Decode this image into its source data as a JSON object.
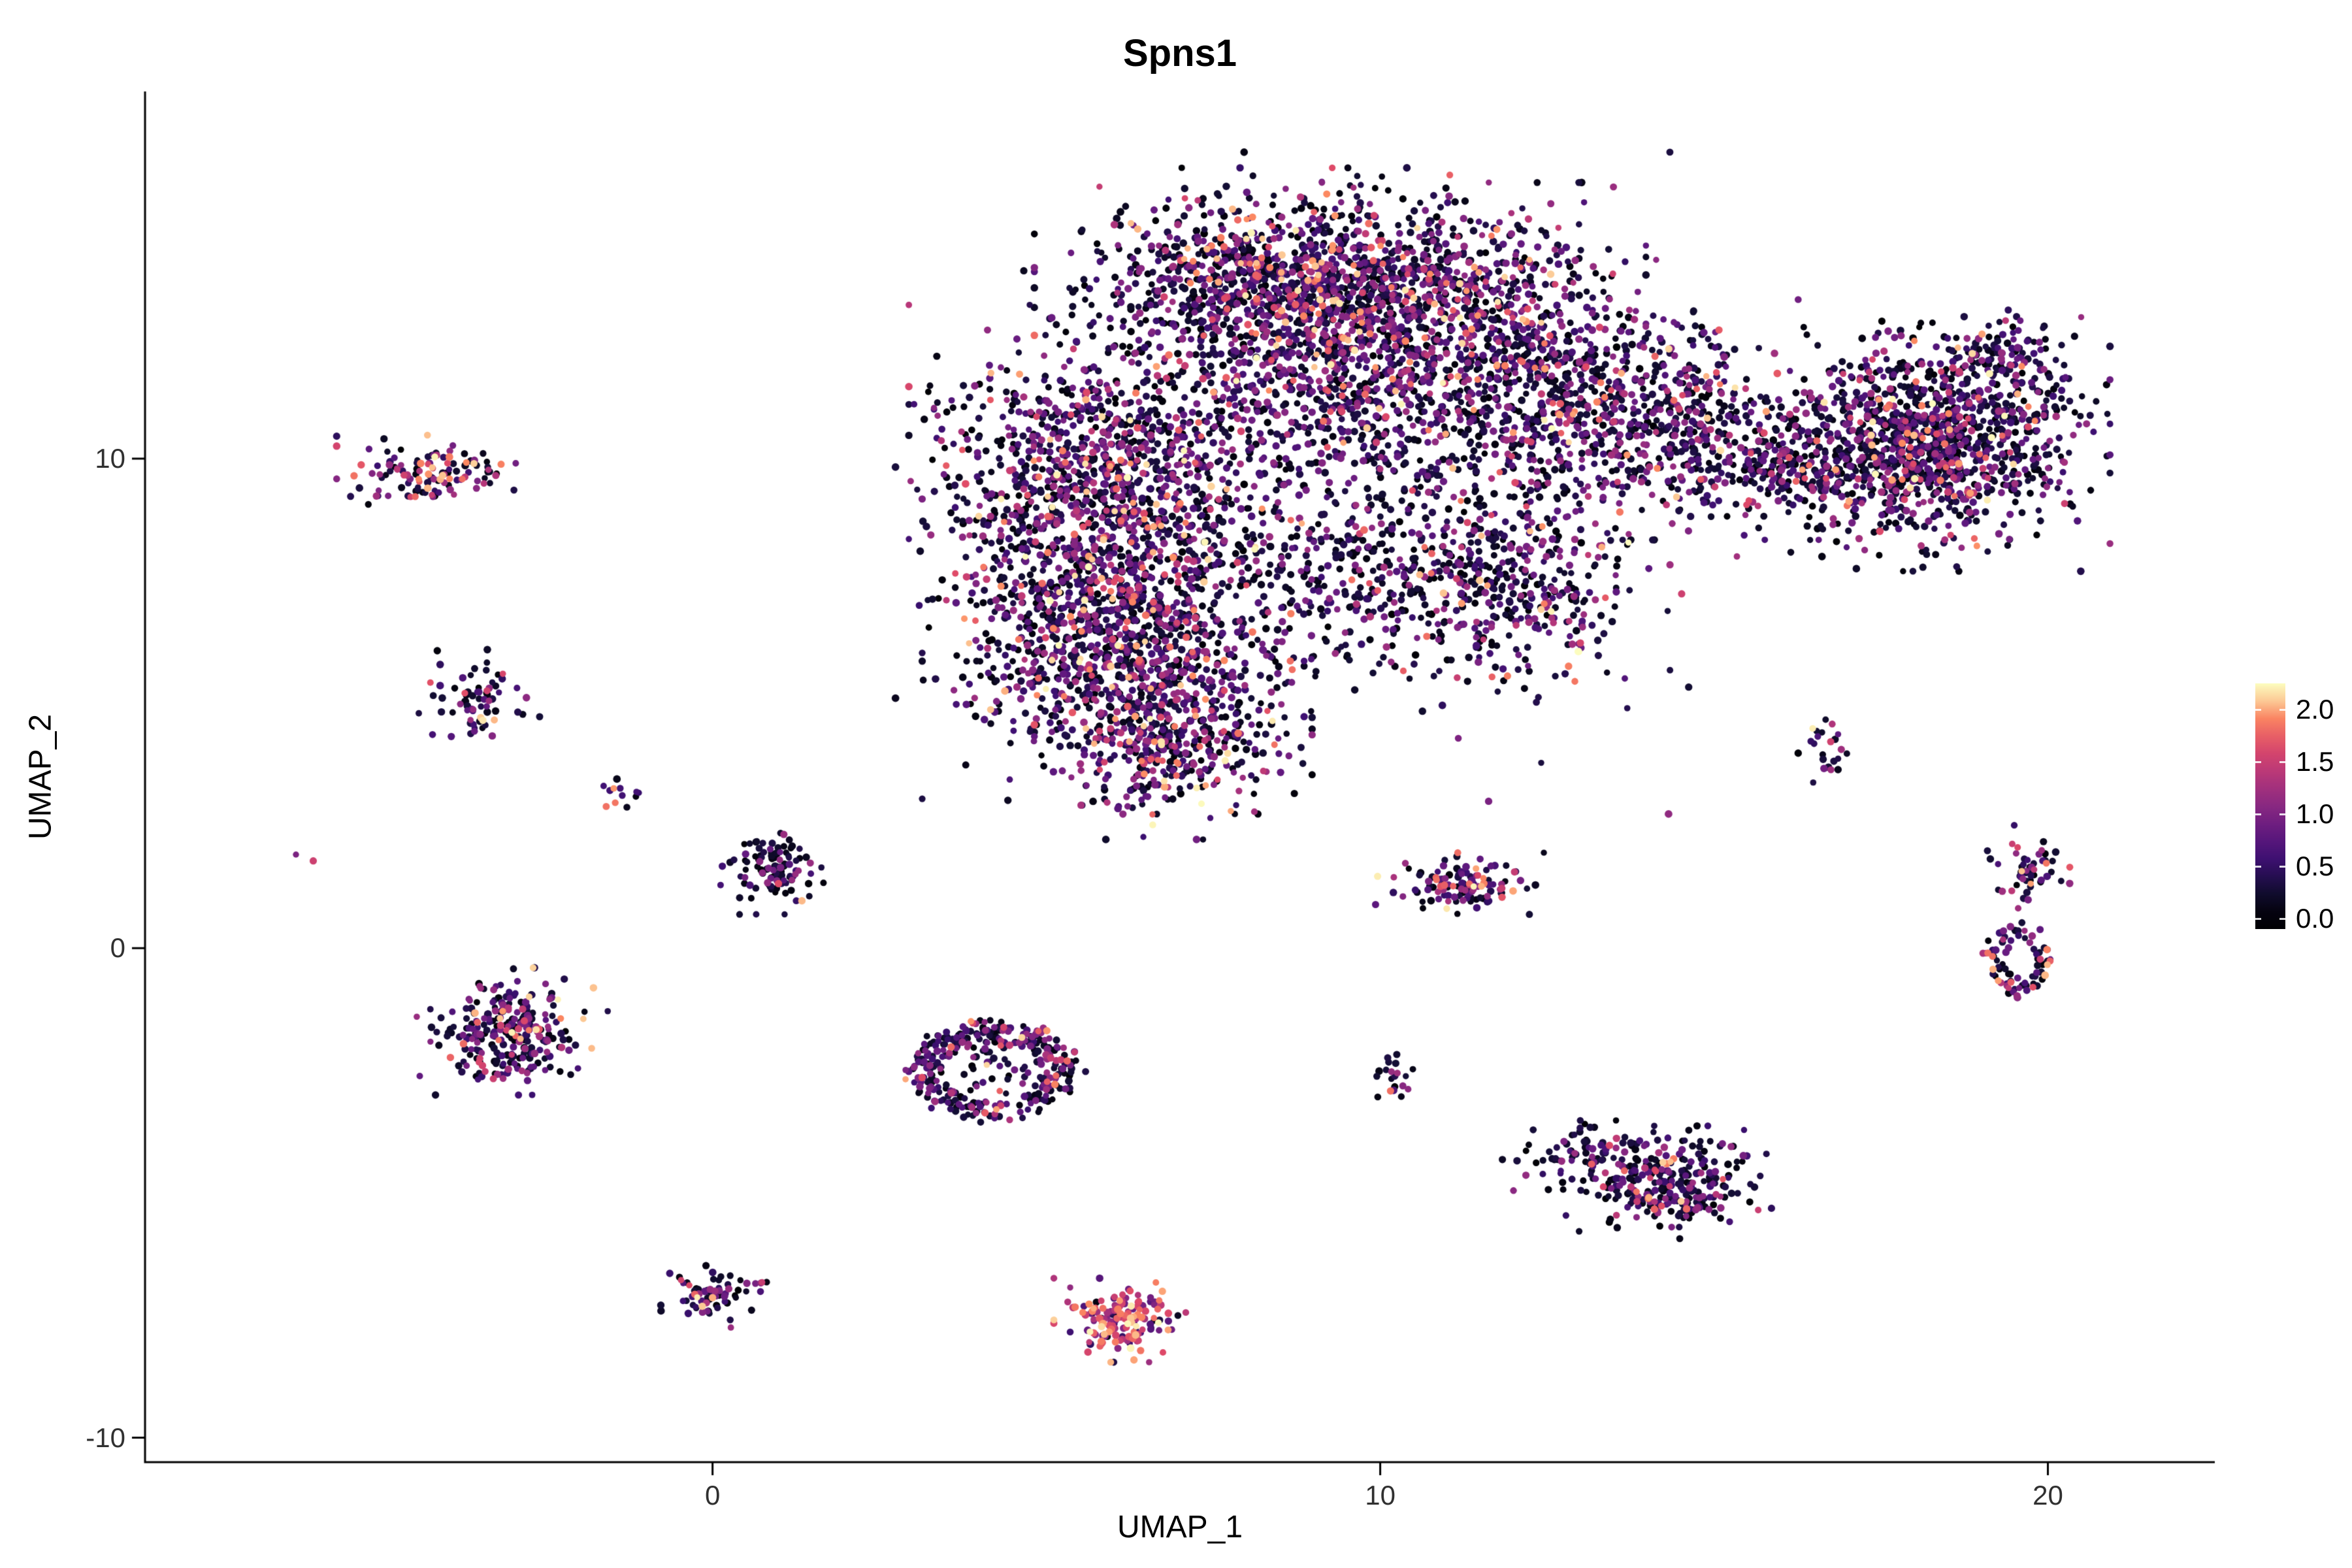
{
  "title": "Spns1",
  "colors": {
    "background": "#ffffff",
    "axis_line": "#000000",
    "tick_label": "#303030",
    "title": "#000000"
  },
  "chart_data": {
    "type": "scatter",
    "title": "Spns1",
    "xlabel": "UMAP_1",
    "ylabel": "UMAP_2",
    "xlim": [
      -8.5,
      22.5
    ],
    "ylim": [
      -10.5,
      17.5
    ],
    "grid": false,
    "point_radius_px": 5.3,
    "x_ticks": [
      {
        "value": 0,
        "label": "0"
      },
      {
        "value": 10,
        "label": "10"
      },
      {
        "value": 20,
        "label": "20"
      }
    ],
    "y_ticks": [
      {
        "value": -10,
        "label": "-10"
      },
      {
        "value": 0,
        "label": "0"
      },
      {
        "value": 10,
        "label": "10"
      }
    ],
    "legend": {
      "type": "colorbar",
      "position": "right",
      "value_range": [
        0,
        2.2
      ],
      "palette": "magma",
      "palette_stops": [
        {
          "t": 0.0,
          "hex": "#000004"
        },
        {
          "t": 0.13,
          "hex": "#140e36"
        },
        {
          "t": 0.25,
          "hex": "#3b0f70"
        },
        {
          "t": 0.38,
          "hex": "#641a80"
        },
        {
          "t": 0.5,
          "hex": "#8c2981"
        },
        {
          "t": 0.63,
          "hex": "#b73779"
        },
        {
          "t": 0.75,
          "hex": "#de4968"
        },
        {
          "t": 0.88,
          "hex": "#fc8961"
        },
        {
          "t": 1.0,
          "hex": "#fcfdbf"
        }
      ],
      "ticks": [
        {
          "value": 2.0,
          "label": "2.0"
        },
        {
          "value": 1.5,
          "label": "1.5"
        },
        {
          "value": 1.0,
          "label": "1.0"
        },
        {
          "value": 0.5,
          "label": "0.5"
        },
        {
          "value": 0.0,
          "label": "0.0"
        }
      ]
    },
    "expression_levels": {
      "dark": [
        0.0,
        0.4
      ],
      "mid": [
        0.45,
        1.25
      ],
      "high": [
        1.25,
        2.2
      ]
    },
    "clusters": [
      {
        "name": "main-left-upper",
        "cx": 5.8,
        "cy": 9.5,
        "sx": 1.1,
        "sy": 1.4,
        "n": 1100,
        "mix": [
          0.5,
          0.38,
          0.12
        ]
      },
      {
        "name": "main-left-lower",
        "cx": 6.0,
        "cy": 6.3,
        "sx": 1.1,
        "sy": 1.3,
        "n": 1000,
        "mix": [
          0.52,
          0.36,
          0.12
        ]
      },
      {
        "name": "main-lower-lobe",
        "cx": 6.9,
        "cy": 4.3,
        "sx": 0.8,
        "sy": 0.8,
        "n": 400,
        "mix": [
          0.5,
          0.38,
          0.12
        ]
      },
      {
        "name": "main-top-arc-left",
        "cx": 8.2,
        "cy": 13.6,
        "sx": 1.3,
        "sy": 0.9,
        "n": 900,
        "mix": [
          0.5,
          0.38,
          0.12
        ]
      },
      {
        "name": "main-top-arc-right",
        "cx": 10.6,
        "cy": 13.3,
        "sx": 1.3,
        "sy": 0.9,
        "n": 800,
        "mix": [
          0.52,
          0.36,
          0.12
        ]
      },
      {
        "name": "main-center",
        "cx": 9.2,
        "cy": 11.2,
        "sx": 1.1,
        "sy": 1.0,
        "n": 500,
        "mix": [
          0.55,
          0.35,
          0.1
        ]
      },
      {
        "name": "main-center-right",
        "cx": 12.6,
        "cy": 11.2,
        "sx": 1.3,
        "sy": 1.1,
        "n": 650,
        "mix": [
          0.58,
          0.33,
          0.09
        ]
      },
      {
        "name": "main-lower-middle",
        "cx": 9.8,
        "cy": 7.7,
        "sx": 1.5,
        "sy": 1.1,
        "n": 400,
        "mix": [
          0.66,
          0.28,
          0.06
        ]
      },
      {
        "name": "main-lower-right",
        "cx": 12.0,
        "cy": 7.3,
        "sx": 0.9,
        "sy": 0.9,
        "n": 300,
        "mix": [
          0.55,
          0.35,
          0.1
        ]
      },
      {
        "name": "main-right-mid",
        "cx": 14.3,
        "cy": 10.6,
        "sx": 0.9,
        "sy": 1.0,
        "n": 300,
        "mix": [
          0.6,
          0.32,
          0.08
        ]
      },
      {
        "name": "main-neck",
        "cx": 16.0,
        "cy": 9.9,
        "sx": 0.8,
        "sy": 0.6,
        "n": 220,
        "mix": [
          0.62,
          0.3,
          0.08
        ]
      },
      {
        "name": "main-diffuse",
        "cx": 9.5,
        "cy": 9.5,
        "sx": 2.6,
        "sy": 2.6,
        "n": 300,
        "mix": [
          0.72,
          0.24,
          0.04
        ]
      },
      {
        "name": "right-lobe",
        "cx": 18.2,
        "cy": 10.3,
        "sx": 1.05,
        "sy": 1.0,
        "n": 1150,
        "mix": [
          0.6,
          0.32,
          0.08
        ]
      },
      {
        "name": "right-lobe-tip",
        "cx": 19.3,
        "cy": 11.9,
        "sx": 0.5,
        "sy": 0.5,
        "n": 130,
        "mix": [
          0.55,
          0.35,
          0.1
        ]
      },
      {
        "name": "sat-left-top",
        "cx": -4.2,
        "cy": 9.7,
        "sx": 0.55,
        "sy": 0.3,
        "n": 120,
        "mix": [
          0.38,
          0.38,
          0.24
        ]
      },
      {
        "name": "sat-left-mid",
        "cx": -3.5,
        "cy": 5.1,
        "sx": 0.35,
        "sy": 0.4,
        "n": 70,
        "mix": [
          0.45,
          0.4,
          0.15
        ]
      },
      {
        "name": "sat-tiny-left",
        "cx": -1.3,
        "cy": 3.2,
        "sx": 0.18,
        "sy": 0.2,
        "n": 12,
        "mix": [
          0.3,
          0.4,
          0.3
        ]
      },
      {
        "name": "sat-lone-dot",
        "cx": -6.1,
        "cy": 1.9,
        "sx": 0.06,
        "sy": 0.06,
        "n": 2,
        "mix": [
          0.1,
          0.3,
          0.6
        ]
      },
      {
        "name": "sat-center-small",
        "cx": 0.9,
        "cy": 1.6,
        "sx": 0.3,
        "sy": 0.35,
        "n": 110,
        "mix": [
          0.7,
          0.25,
          0.05
        ]
      },
      {
        "name": "sat-left-lower",
        "cx": -3.0,
        "cy": -1.7,
        "sx": 0.55,
        "sy": 0.5,
        "n": 280,
        "mix": [
          0.45,
          0.4,
          0.15
        ]
      },
      {
        "name": "ring-center",
        "cx": 4.2,
        "cy": -2.5,
        "sx": 1.3,
        "sy": 1.0,
        "n": 300,
        "mix": [
          0.55,
          0.35,
          0.1
        ],
        "ring": [
          0.6,
          1.0
        ]
      },
      {
        "name": "ring-center-fill",
        "cx": 4.2,
        "cy": -2.4,
        "sx": 0.4,
        "sy": 0.35,
        "n": 45,
        "mix": [
          0.6,
          0.32,
          0.08
        ]
      },
      {
        "name": "sat-tiny-diag",
        "cx": 10.2,
        "cy": -2.6,
        "sx": 0.18,
        "sy": 0.2,
        "n": 20,
        "mix": [
          0.5,
          0.35,
          0.15
        ]
      },
      {
        "name": "sat-mid-elong",
        "cx": 11.2,
        "cy": 1.3,
        "sx": 0.5,
        "sy": 0.25,
        "n": 120,
        "mix": [
          0.45,
          0.38,
          0.17
        ]
      },
      {
        "name": "sat-right-lower",
        "cx": 14.3,
        "cy": -4.8,
        "sx": 0.6,
        "sy": 0.45,
        "n": 280,
        "mix": [
          0.55,
          0.35,
          0.1
        ]
      },
      {
        "name": "sat-right-lower-sparse",
        "cx": 13.0,
        "cy": -4.3,
        "sx": 0.45,
        "sy": 0.3,
        "n": 80,
        "mix": [
          0.68,
          0.27,
          0.05
        ]
      },
      {
        "name": "sat-tiny-right-diag",
        "cx": 16.7,
        "cy": 4.1,
        "sx": 0.15,
        "sy": 0.3,
        "n": 22,
        "mix": [
          0.6,
          0.3,
          0.1
        ]
      },
      {
        "name": "sat-far-right-small",
        "cx": 19.7,
        "cy": 1.6,
        "sx": 0.3,
        "sy": 0.35,
        "n": 55,
        "mix": [
          0.4,
          0.35,
          0.25
        ]
      },
      {
        "name": "ring-far-right",
        "cx": 19.6,
        "cy": -0.2,
        "sx": 0.5,
        "sy": 0.8,
        "n": 80,
        "mix": [
          0.5,
          0.35,
          0.15
        ],
        "ring": [
          0.5,
          1.0
        ]
      },
      {
        "name": "sat-bottom-left-streak",
        "cx": -0.1,
        "cy": -7.1,
        "sx": 0.35,
        "sy": 0.25,
        "n": 75,
        "mix": [
          0.5,
          0.35,
          0.15
        ]
      },
      {
        "name": "bright-bottom-cluster",
        "cx": 6.1,
        "cy": -7.6,
        "sx": 0.38,
        "sy": 0.33,
        "n": 160,
        "mix": [
          0.08,
          0.3,
          0.62
        ]
      }
    ]
  }
}
